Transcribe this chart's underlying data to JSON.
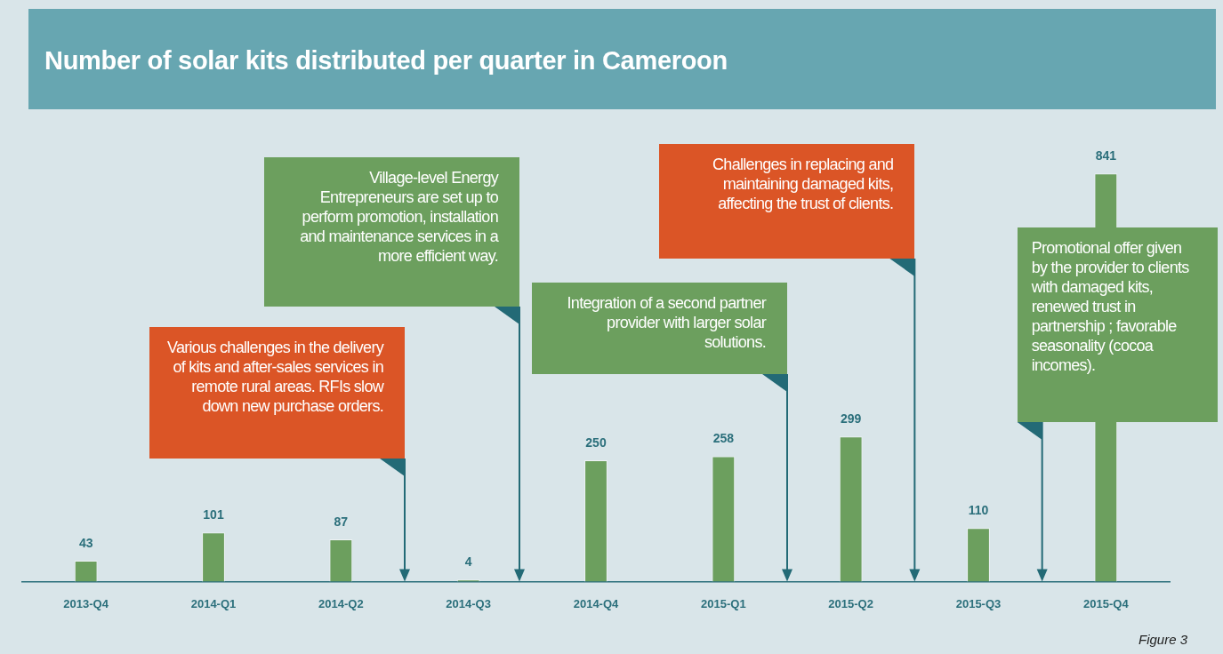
{
  "chart_data": {
    "type": "bar",
    "title": "Number of solar kits distributed per quarter in Cameroon",
    "categories": [
      "2013-Q4",
      "2014-Q1",
      "2014-Q2",
      "2014-Q3",
      "2014-Q4",
      "2015-Q1",
      "2015-Q2",
      "2015-Q3",
      "2015-Q4"
    ],
    "values": [
      43,
      101,
      87,
      4,
      250,
      258,
      299,
      110,
      841
    ],
    "color": "#6c9f5e",
    "data_labels": true,
    "legend": false,
    "grid": false,
    "tick_labels": "x",
    "annotations": [
      "Various challenges in the delivery of kits and after-sales services in remote rural areas. RFIs slow down new purchase orders.",
      "Village-level Energy Entrepreneurs are set up to perform promotion, installation and maintenance services in a more efficient way.",
      "Integration of a second partner provider with larger solar solutions.",
      "Challenges in replacing and maintaining damaged kits, affecting the trust of clients.",
      "Promotional offer given by the provider to clients with damaged kits, renewed trust in partnership ; favorable seasonality (cocoa incomes).",
      "Figure 3"
    ]
  }
}
